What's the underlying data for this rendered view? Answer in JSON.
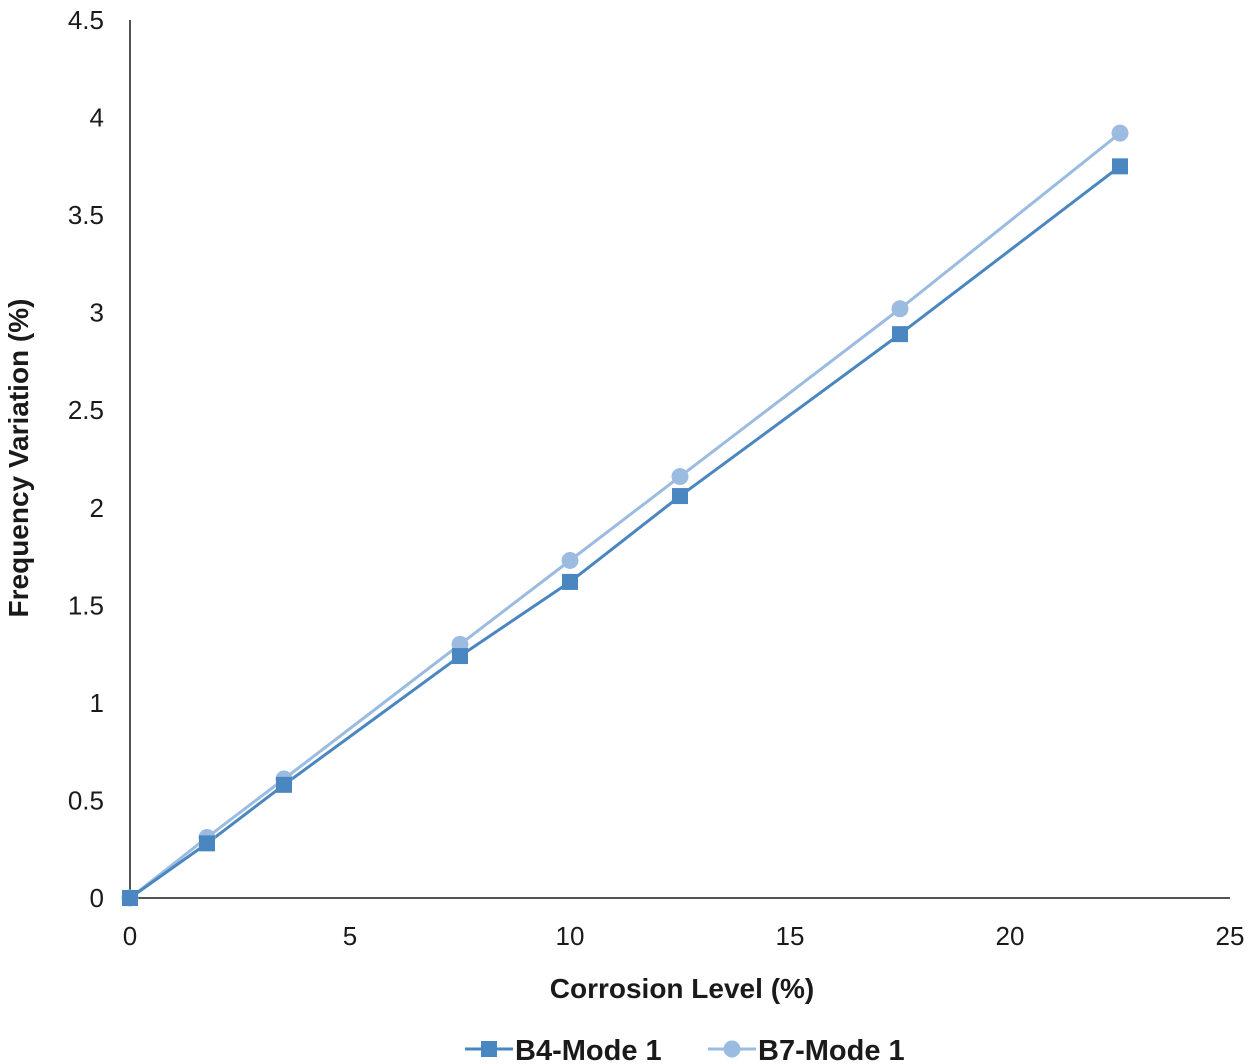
{
  "chart_data": {
    "type": "line",
    "title": "",
    "xlabel": "Corrosion Level (%)",
    "ylabel": "Frequency Variation (%)",
    "xlim": [
      0,
      25
    ],
    "ylim": [
      0,
      4.5
    ],
    "x_ticks": [
      0,
      5,
      10,
      15,
      20,
      25
    ],
    "y_ticks": [
      0,
      0.5,
      1,
      1.5,
      2,
      2.5,
      3,
      3.5,
      4,
      4.5
    ],
    "x_tick_labels": [
      "0",
      "5",
      "10",
      "15",
      "20",
      "25"
    ],
    "y_tick_labels": [
      "0",
      "0.5",
      "1",
      "1.5",
      "2",
      "2.5",
      "3",
      "3.5",
      "4",
      "4.5"
    ],
    "grid": false,
    "legend_position": "bottom-center",
    "series": [
      {
        "name": "B4-Mode 1",
        "color": "#4a86c0",
        "marker": "square",
        "x": [
          0,
          1.75,
          3.5,
          7.5,
          10,
          12.5,
          17.5,
          22.5
        ],
        "y": [
          0,
          0.28,
          0.58,
          1.24,
          1.62,
          2.06,
          2.89,
          3.75
        ]
      },
      {
        "name": "B7-Mode 1",
        "color": "#9bbce0",
        "marker": "circle",
        "x": [
          0,
          1.75,
          3.5,
          7.5,
          10,
          12.5,
          17.5,
          22.5
        ],
        "y": [
          0,
          0.31,
          0.61,
          1.3,
          1.73,
          2.16,
          3.02,
          3.92
        ]
      }
    ]
  }
}
